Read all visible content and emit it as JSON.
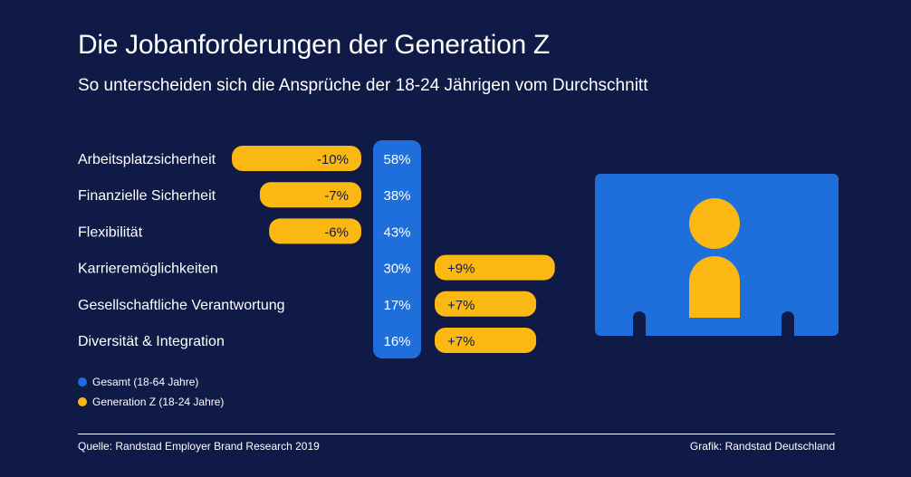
{
  "title": "Die Jobanforderungen der Generation Z",
  "subtitle": "So unterscheiden sich die Ansprüche der 18-24 Jährigen vom Durchschnitt",
  "colors": {
    "background": "#0f1a47",
    "gesamt": "#1e6fdc",
    "genz": "#fbb812"
  },
  "chart_data": {
    "type": "bar",
    "categories": [
      "Arbeitsplatzsicherheit",
      "Finanzielle Sicherheit",
      "Flexibilität",
      "Karrieremöglichkeiten",
      "Gesellschaftliche Verantwortung",
      "Diversität & Integration"
    ],
    "series": [
      {
        "name": "Gesamt (18-64 Jahre)",
        "values": [
          58,
          38,
          43,
          30,
          17,
          16
        ],
        "labels": [
          "58%",
          "38%",
          "43%",
          "30%",
          "17%",
          "16%"
        ]
      },
      {
        "name": "Generation Z (18-24 Jahre)",
        "values": [
          -10,
          -7,
          -6,
          9,
          7,
          7
        ],
        "labels": [
          "-10%",
          "-7%",
          "-6%",
          "+9%",
          "+7%",
          "+7%"
        ]
      }
    ],
    "legend": "bottom-left"
  },
  "legend": {
    "gesamt": "Gesamt (18-64 Jahre)",
    "genz": "Generation Z (18-24 Jahre)"
  },
  "footer": {
    "source": "Quelle: Randstad Employer Brand Research 2019",
    "credit": "Grafik: Randstad Deutschland"
  },
  "illustration": {
    "icon": "person-icon"
  }
}
